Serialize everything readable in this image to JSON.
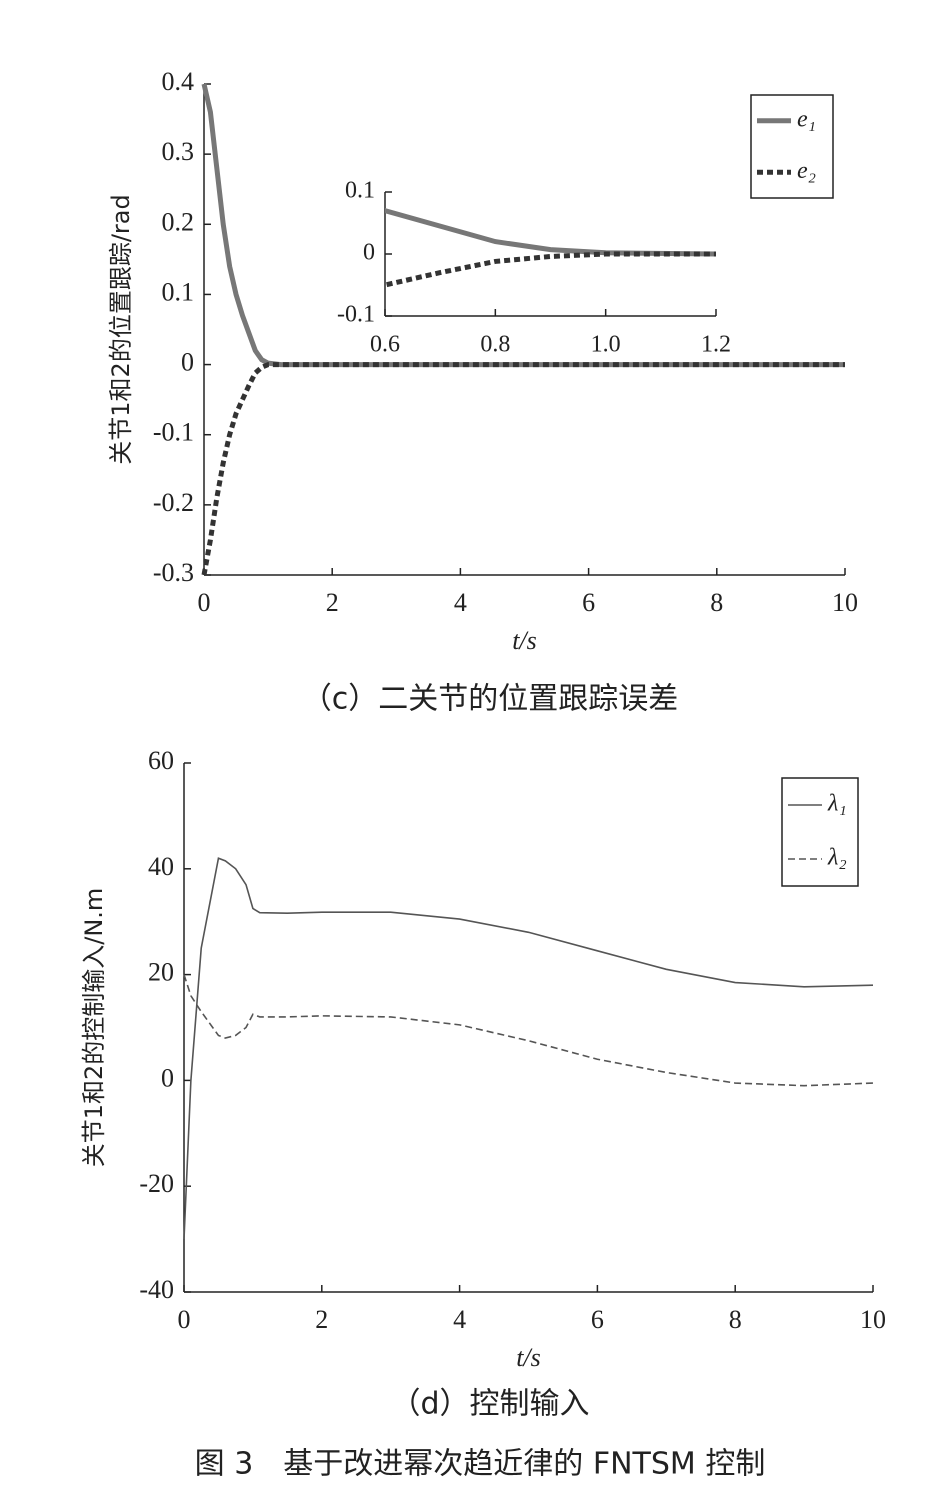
{
  "chart_data": [
    {
      "type": "line",
      "caption": "（c）二关节的位置跟踪误差",
      "xlabel": "t/s",
      "ylabel": "关节1和2的位置跟踪/rad",
      "x": [
        0,
        0.1,
        0.2,
        0.3,
        0.4,
        0.5,
        0.6,
        0.7,
        0.8,
        0.9,
        1.0,
        1.2,
        2,
        4,
        6,
        8,
        10
      ],
      "xlim": [
        0,
        10
      ],
      "xticks": [
        0,
        2,
        4,
        6,
        8,
        10
      ],
      "ylim": [
        -0.3,
        0.4
      ],
      "yticks": [
        -0.3,
        -0.2,
        -0.1,
        0,
        0.1,
        0.2,
        0.3,
        0.4
      ],
      "legend": "upper right",
      "series": [
        {
          "name": "e₁",
          "color": "#777777",
          "linestyle": "solid",
          "width": 5,
          "values": [
            0.4,
            0.36,
            0.28,
            0.2,
            0.14,
            0.1,
            0.07,
            0.045,
            0.02,
            0.007,
            0.002,
            0,
            0,
            0,
            0,
            0,
            0
          ]
        },
        {
          "name": "e₂",
          "color": "#333333",
          "linestyle": "dashed",
          "width": 5,
          "values": [
            -0.3,
            -0.25,
            -0.19,
            -0.14,
            -0.1,
            -0.07,
            -0.05,
            -0.03,
            -0.012,
            -0.004,
            0,
            0,
            0,
            0,
            0,
            0,
            0
          ]
        }
      ],
      "inset": {
        "xlim": [
          0.6,
          1.2
        ],
        "xticks": [
          0.6,
          0.8,
          {
            "value": 1,
            "label": "1.0"
          },
          1.2
        ],
        "ylim": [
          -0.1,
          0.1
        ],
        "yticks": [
          -0.1,
          0,
          0.1
        ]
      }
    },
    {
      "type": "line",
      "caption": "（d）控制输入",
      "xlabel": "t/s",
      "ylabel": "关节1和2的控制输入/N.m",
      "x": [
        0,
        0.1,
        0.25,
        0.5,
        0.6,
        0.75,
        0.9,
        1.0,
        1.1,
        1.5,
        2,
        3,
        4,
        5,
        6,
        7,
        8,
        9,
        10
      ],
      "xlim": [
        0,
        10
      ],
      "xticks": [
        0,
        2,
        4,
        6,
        8,
        10
      ],
      "ylim": [
        -40,
        60
      ],
      "yticks": [
        -40,
        -20,
        0,
        20,
        40,
        60
      ],
      "legend": "upper right",
      "series": [
        {
          "name": "λ₁",
          "color": "#555555",
          "linestyle": "solid",
          "width": 1.6,
          "values": [
            -30,
            0,
            25,
            42,
            41.5,
            40,
            37,
            32.5,
            31.7,
            31.6,
            31.8,
            31.8,
            30.5,
            28,
            24.5,
            21,
            18.5,
            17.7,
            18
          ]
        },
        {
          "name": "λ₂",
          "color": "#555555",
          "linestyle": "dashed",
          "width": 1.6,
          "values": [
            20,
            16,
            13,
            8.5,
            8,
            8.5,
            10,
            12.5,
            12,
            12,
            12.2,
            12,
            10.5,
            7.5,
            4,
            1.5,
            -0.5,
            -1,
            -0.5
          ]
        }
      ]
    }
  ],
  "figure_caption": "图 3　基于改进幂次趋近律的 FNTSM 控制"
}
